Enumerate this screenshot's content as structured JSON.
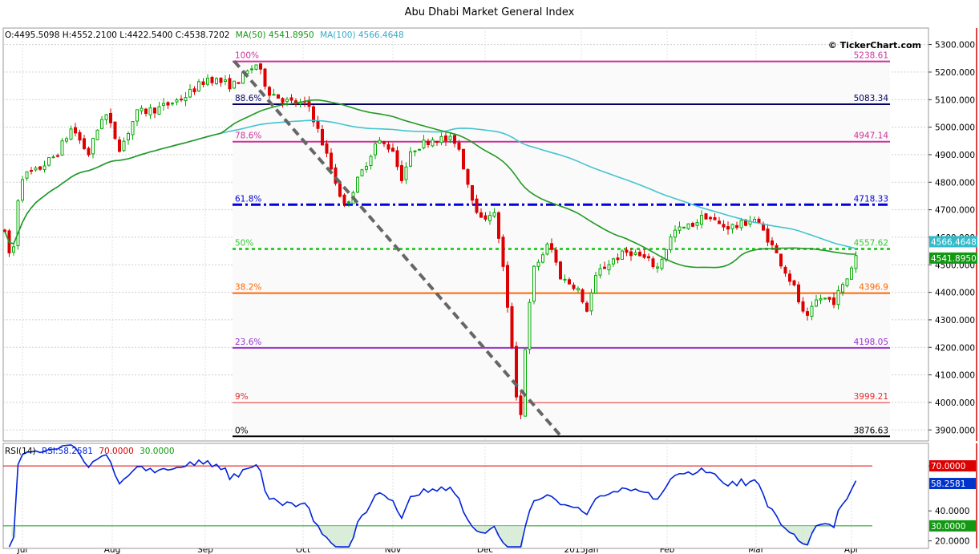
{
  "title": "Abu Dhabi Market General Index",
  "watermark": "© TickerChart.com",
  "ohlc_header": {
    "ohlc": "O:4495.5098 H:4552.2100 L:4422.5400 C:4538.7202",
    "ma50": "MA(50) 4541.8950",
    "ma100": "MA(100) 4566.4648"
  },
  "rsi_header": {
    "name": "RSI(14)",
    "value": "RSI:58.2581",
    "upper": "70.0000",
    "lower": "30.0000"
  },
  "chart_data": {
    "type": "candlestick",
    "price_axis": {
      "ticks": [
        3900,
        4000,
        4100,
        4200,
        4300,
        4400,
        4500,
        4600,
        4700,
        4800,
        4900,
        5000,
        5100,
        5200,
        5300
      ],
      "range": [
        3860,
        5360
      ]
    },
    "rsi_axis": {
      "ticks": [
        20,
        40,
        70
      ],
      "range": [
        15,
        85
      ]
    },
    "x_labels": [
      "Jul",
      "Aug",
      "Sep",
      "Oct",
      "Nov",
      "Dec",
      "2015Jan",
      "Feb",
      "Mar",
      "Apr"
    ],
    "fib_levels": [
      {
        "label": "100%",
        "value": 5238.61,
        "value_label": "5238.61",
        "color": "#cc3399",
        "style": "solid"
      },
      {
        "label": "88.6%",
        "value": 5083.34,
        "value_label": "5083.34",
        "color": "#000066",
        "style": "solid"
      },
      {
        "label": "78.6%",
        "value": 4947.14,
        "value_label": "4947.14",
        "color": "#cc3399",
        "style": "solid"
      },
      {
        "label": "61.8%",
        "value": 4718.33,
        "value_label": "4718.33",
        "color": "#0000dd",
        "style": "dashdot"
      },
      {
        "label": "50%",
        "value": 4557.62,
        "value_label": "4557.62",
        "color": "#33cc33",
        "style": "dotted"
      },
      {
        "label": "38.2%",
        "value": 4396.9,
        "value_label": "4396.9",
        "color": "#ff6600",
        "style": "solid"
      },
      {
        "label": "23.6%",
        "value": 4198.05,
        "value_label": "4198.05",
        "color": "#9933cc",
        "style": "solid"
      },
      {
        "label": "9%",
        "value": 3999.21,
        "value_label": "3999.21",
        "color": "#e03030",
        "style": "solid"
      },
      {
        "label": "0%",
        "value": 3876.63,
        "value_label": "3876.63",
        "color": "#000000",
        "style": "solid"
      }
    ],
    "price_badges": [
      {
        "value": 4566.4648,
        "label": "4566.4648",
        "color": "#33bbcc"
      },
      {
        "value": 4541.895,
        "label": "4541.8950",
        "color": "#119911"
      }
    ],
    "rsi_badges": [
      {
        "value": 70,
        "label": "70.0000",
        "color": "#dd0000"
      },
      {
        "value": 58.2581,
        "label": "58.2581",
        "color": "#0033cc"
      },
      {
        "value": 30,
        "label": "30.0000",
        "color": "#119911"
      }
    ],
    "trendline": {
      "from": 5240,
      "to": 3876
    },
    "colors": {
      "up": "#00aa00",
      "down": "#dd0000",
      "ma50": "#229922",
      "ma100": "#44c4d0",
      "rsi": "#0022dd"
    }
  }
}
